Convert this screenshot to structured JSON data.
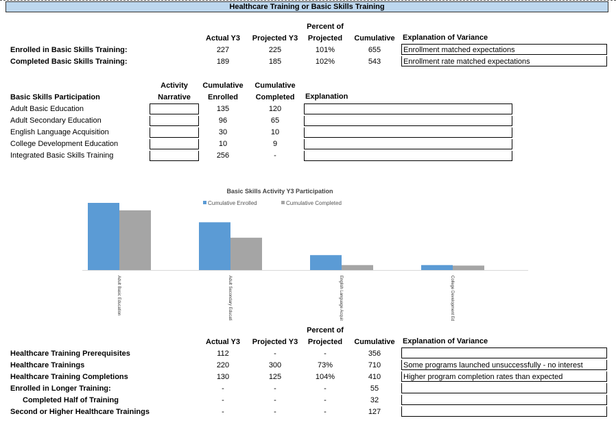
{
  "title": "Healthcare Training or Basic Skills Training",
  "s1": {
    "headers": {
      "percent_top": "Percent of",
      "actual": "Actual Y3",
      "projected": "Projected Y3",
      "percent": "Projected",
      "cumulative": "Cumulative",
      "explanation": "Explanation of Variance"
    },
    "rows": [
      {
        "label": "Enrolled in Basic Skills Training:",
        "actual": "227",
        "projected": "225",
        "percent": "101%",
        "cumulative": "655",
        "explanation": "Enrollment matched expectations"
      },
      {
        "label": "Completed Basic Skills Training:",
        "actual": "189",
        "projected": "185",
        "percent": "102%",
        "cumulative": "543",
        "explanation": "Enrollment rate matched expectations"
      }
    ]
  },
  "s2": {
    "headers": {
      "title": "Basic Skills Participation",
      "activity_top": "Activity",
      "activity": "Narrative",
      "enrolled_top": "Cumulative",
      "enrolled": "Enrolled",
      "completed_top": "Cumulative",
      "completed": "Completed",
      "explanation": "Explanation"
    },
    "rows": [
      {
        "label": "Adult Basic Education",
        "narrative": "",
        "enrolled": "135",
        "completed": "120",
        "explanation": ""
      },
      {
        "label": "Adult Secondary Education",
        "narrative": "",
        "enrolled": "96",
        "completed": "65",
        "explanation": ""
      },
      {
        "label": "English Language Acquisition",
        "narrative": "",
        "enrolled": "30",
        "completed": "10",
        "explanation": ""
      },
      {
        "label": "College Development Education",
        "narrative": "",
        "enrolled": "10",
        "completed": "9",
        "explanation": ""
      },
      {
        "label": "Integrated Basic Skills Training",
        "narrative": "",
        "enrolled": "256",
        "completed": "-",
        "explanation": ""
      }
    ]
  },
  "chart_data": {
    "type": "bar",
    "title": "Basic Skills Activity Y3 Participation",
    "categories": [
      "Adult Basic Education",
      "Adult Secondary Education",
      "English Language Acquisition",
      "College Development Education"
    ],
    "series": [
      {
        "name": "Cumulative Enrolled",
        "values": [
          135,
          96,
          30,
          10
        ],
        "color": "#5b9bd5"
      },
      {
        "name": "Cumulative Completed",
        "values": [
          120,
          65,
          10,
          9
        ],
        "color": "#a5a5a5"
      }
    ],
    "ylim": [
      0,
      135
    ],
    "legend": "top",
    "grid": false
  },
  "s3": {
    "headers": {
      "percent_top": "Percent of",
      "actual": "Actual Y3",
      "projected": "Projected Y3",
      "percent": "Projected",
      "cumulative": "Cumulative",
      "explanation": "Explanation of Variance"
    },
    "rows": [
      {
        "label": "Healthcare Training Prerequisites",
        "actual": "112",
        "projected": "-",
        "percent": "-",
        "cumulative": "356",
        "explanation": ""
      },
      {
        "label": "Healthcare Trainings",
        "actual": "220",
        "projected": "300",
        "percent": "73%",
        "cumulative": "710",
        "explanation": "Some programs launched unsuccessfully - no interest"
      },
      {
        "label": "Healthcare Training Completions",
        "actual": "130",
        "projected": "125",
        "percent": "104%",
        "cumulative": "410",
        "explanation": "Higher program completion rates than expected"
      },
      {
        "label": "Enrolled in Longer Training:",
        "actual": "-",
        "projected": "-",
        "percent": "-",
        "cumulative": "55",
        "explanation": ""
      },
      {
        "label": "Completed Half of Training",
        "actual": "-",
        "projected": "-",
        "percent": "-",
        "cumulative": "32",
        "explanation": ""
      },
      {
        "label": "Second or Higher Healthcare Trainings",
        "actual": "-",
        "projected": "-",
        "percent": "-",
        "cumulative": "127",
        "explanation": ""
      }
    ]
  }
}
